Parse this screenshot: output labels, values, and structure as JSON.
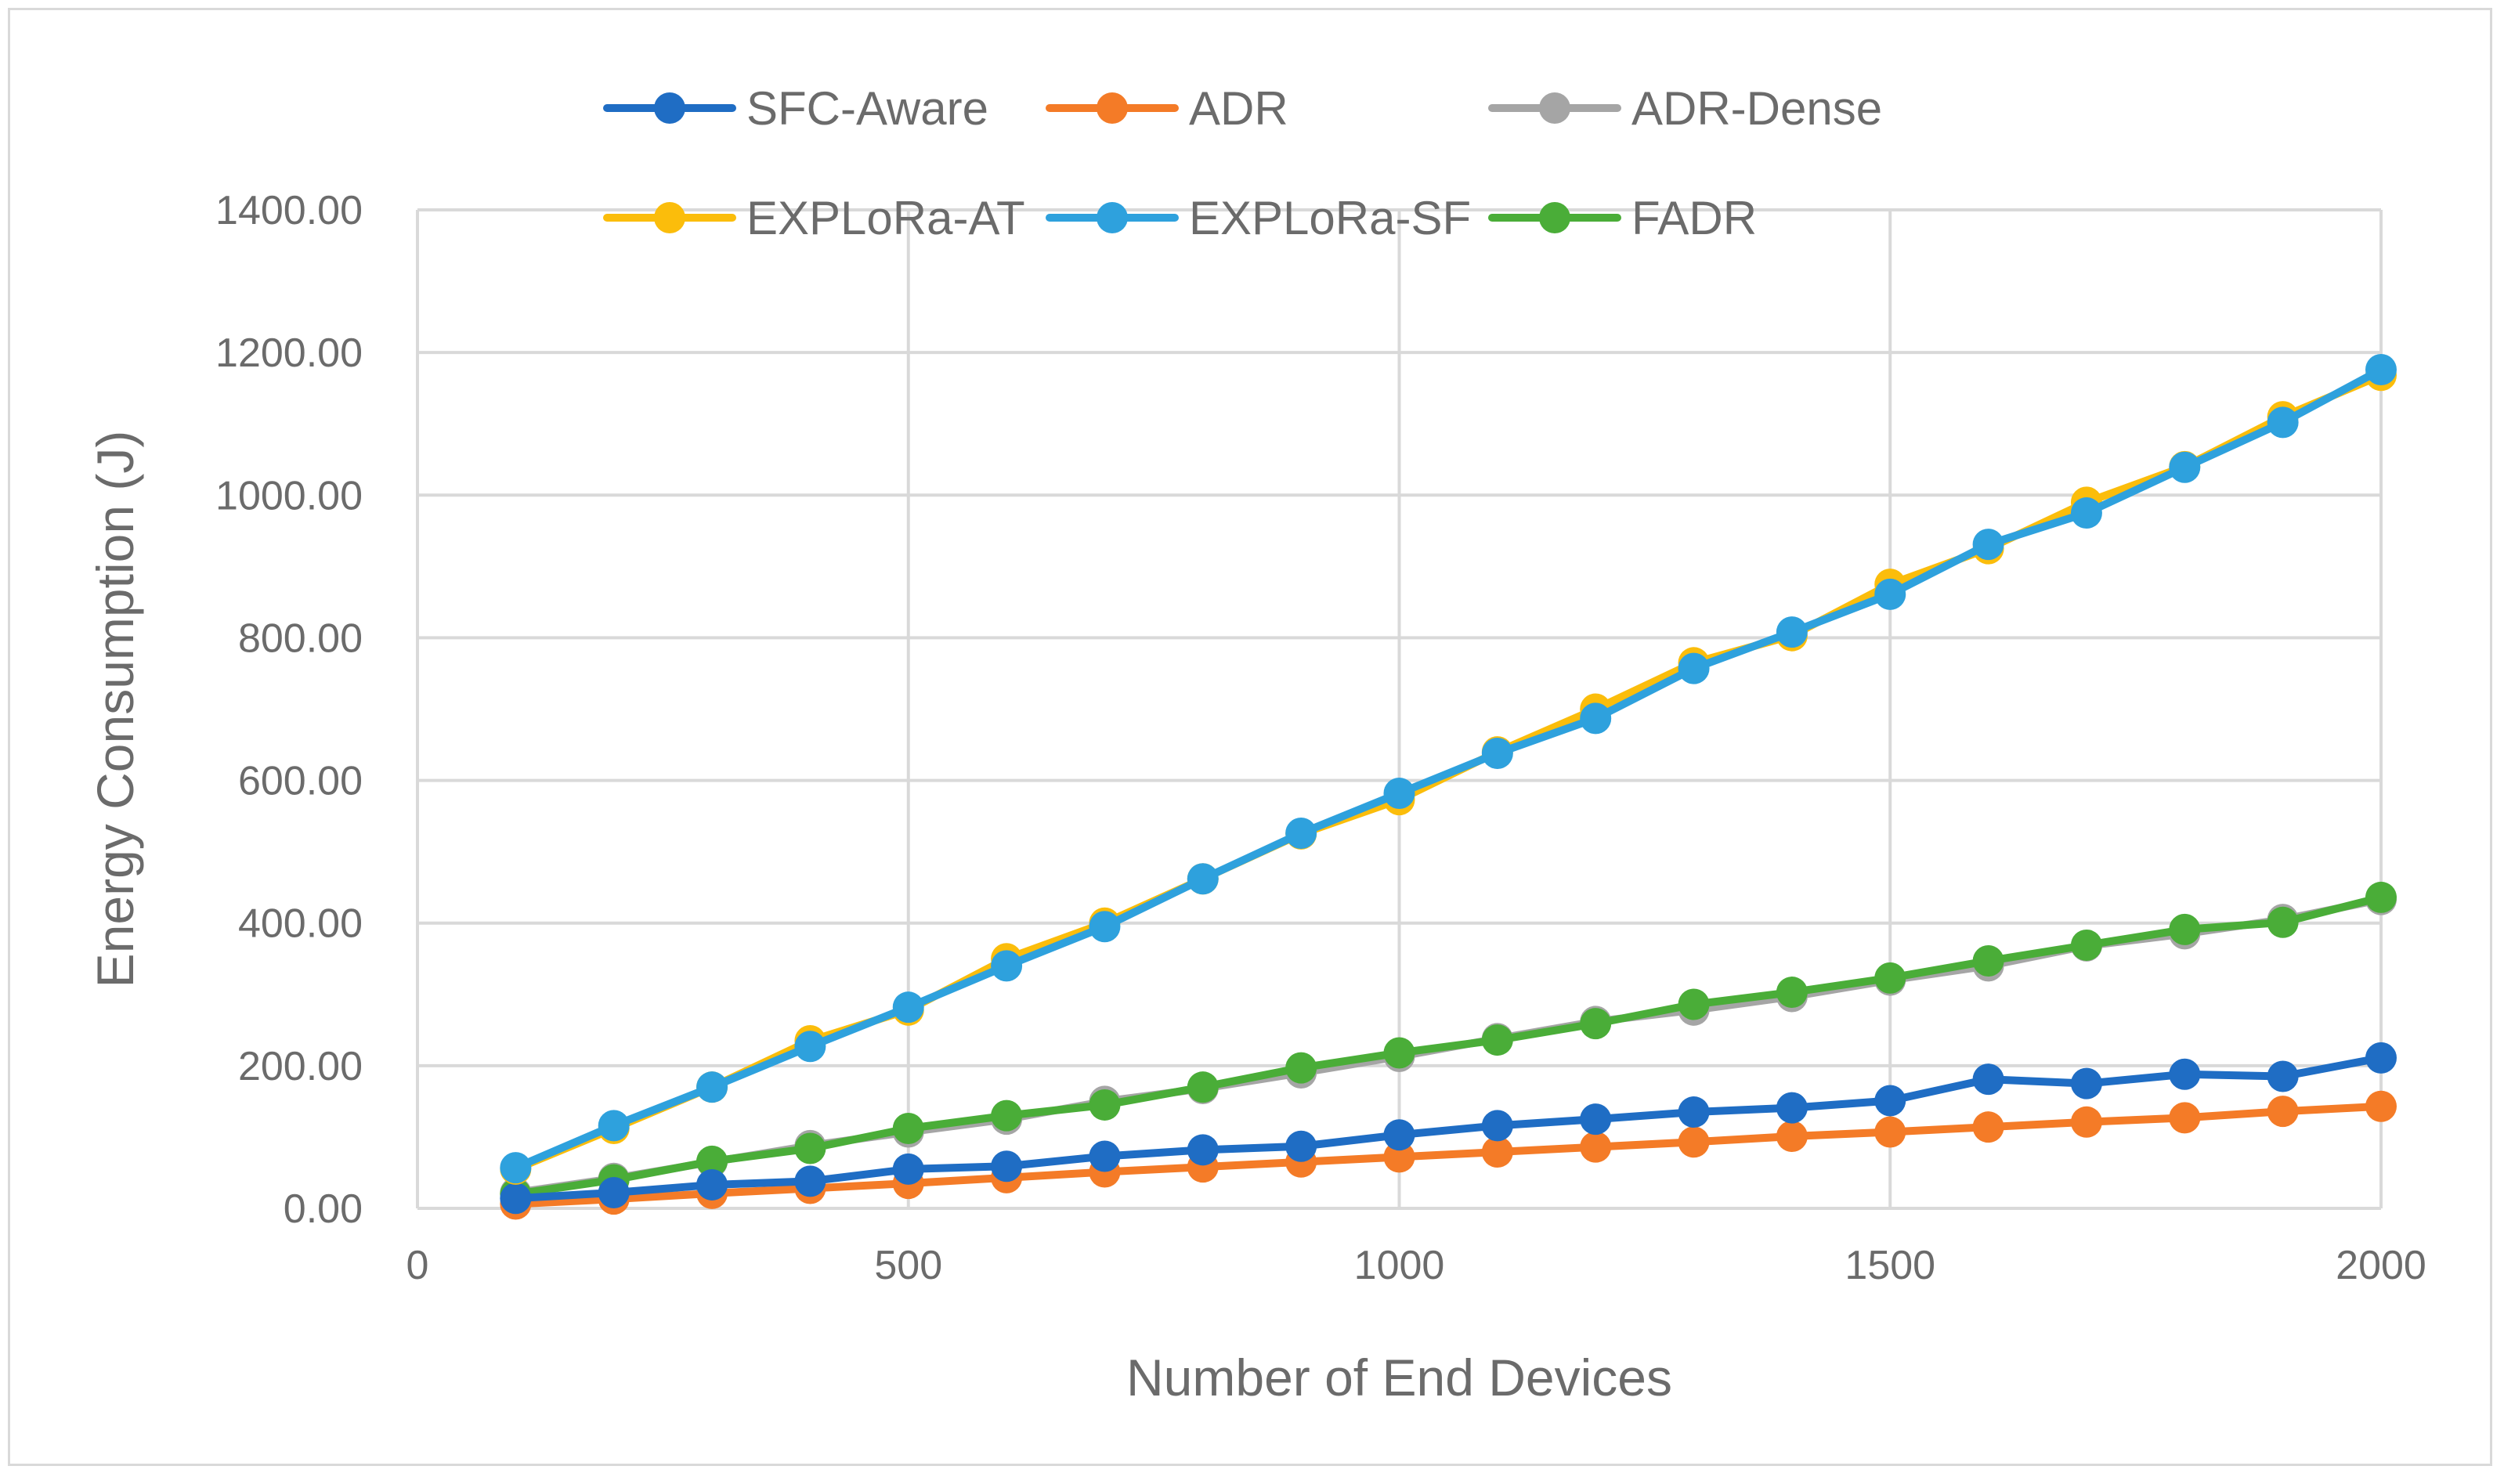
{
  "chart_data": {
    "type": "line",
    "title": "",
    "xlabel": "Number of End Devices",
    "ylabel": "Energy Consumption (J)",
    "xlim": [
      0,
      2000
    ],
    "ylim": [
      0,
      1400
    ],
    "x_ticks": [
      0,
      500,
      1000,
      1500,
      2000
    ],
    "x_tick_labels": [
      "0",
      "500",
      "1000",
      "1500",
      "2000"
    ],
    "y_ticks": [
      0,
      200,
      400,
      600,
      800,
      1000,
      1200,
      1400
    ],
    "y_tick_labels": [
      "0.00",
      "200.00",
      "400.00",
      "600.00",
      "800.00",
      "1000.00",
      "1200.00",
      "1400.00"
    ],
    "grid": true,
    "legend_position": "top",
    "x": [
      100,
      200,
      300,
      400,
      500,
      600,
      700,
      800,
      900,
      1000,
      1100,
      1200,
      1300,
      1400,
      1500,
      1600,
      1700,
      1800,
      1900,
      2000
    ],
    "series": [
      {
        "name": "ADR-Dense",
        "color": "#a5a5a5",
        "values": [
          22,
          42,
          65,
          88,
          107,
          125,
          150,
          168,
          190,
          213,
          238,
          262,
          278,
          297,
          320,
          340,
          368,
          385,
          405,
          433
        ]
      },
      {
        "name": "FADR",
        "color": "#4aad38",
        "values": [
          20,
          40,
          66,
          84,
          112,
          130,
          145,
          170,
          197,
          218,
          236,
          259,
          286,
          303,
          323,
          347,
          369,
          391,
          401,
          436
        ]
      },
      {
        "name": "ADR",
        "color": "#f47b27",
        "values": [
          6,
          13,
          21,
          28,
          35,
          43,
          51,
          58,
          65,
          72,
          79,
          86,
          93,
          101,
          107,
          114,
          121,
          127,
          136,
          143
        ]
      },
      {
        "name": "SFC-Aware",
        "color": "#1f6dc4",
        "values": [
          14,
          22,
          33,
          38,
          55,
          59,
          73,
          82,
          87,
          103,
          116,
          125,
          135,
          141,
          151,
          181,
          175,
          188,
          185,
          211
        ]
      },
      {
        "name": "EXPLoRa-AT",
        "color": "#fbbd0b",
        "values": [
          55,
          112,
          170,
          235,
          278,
          350,
          400,
          462,
          525,
          573,
          640,
          700,
          765,
          803,
          875,
          925,
          990,
          1040,
          1110,
          1168
        ]
      },
      {
        "name": "EXPLoRa-SF",
        "color": "#2ea1dd",
        "values": [
          57,
          116,
          170,
          227,
          282,
          340,
          395,
          462,
          526,
          582,
          638,
          687,
          757,
          808,
          861,
          931,
          975,
          1039,
          1102,
          1176
        ]
      }
    ],
    "legend_order": [
      "SFC-Aware",
      "ADR",
      "ADR-Dense",
      "EXPLoRa-AT",
      "EXPLoRa-SF",
      "FADR"
    ]
  }
}
